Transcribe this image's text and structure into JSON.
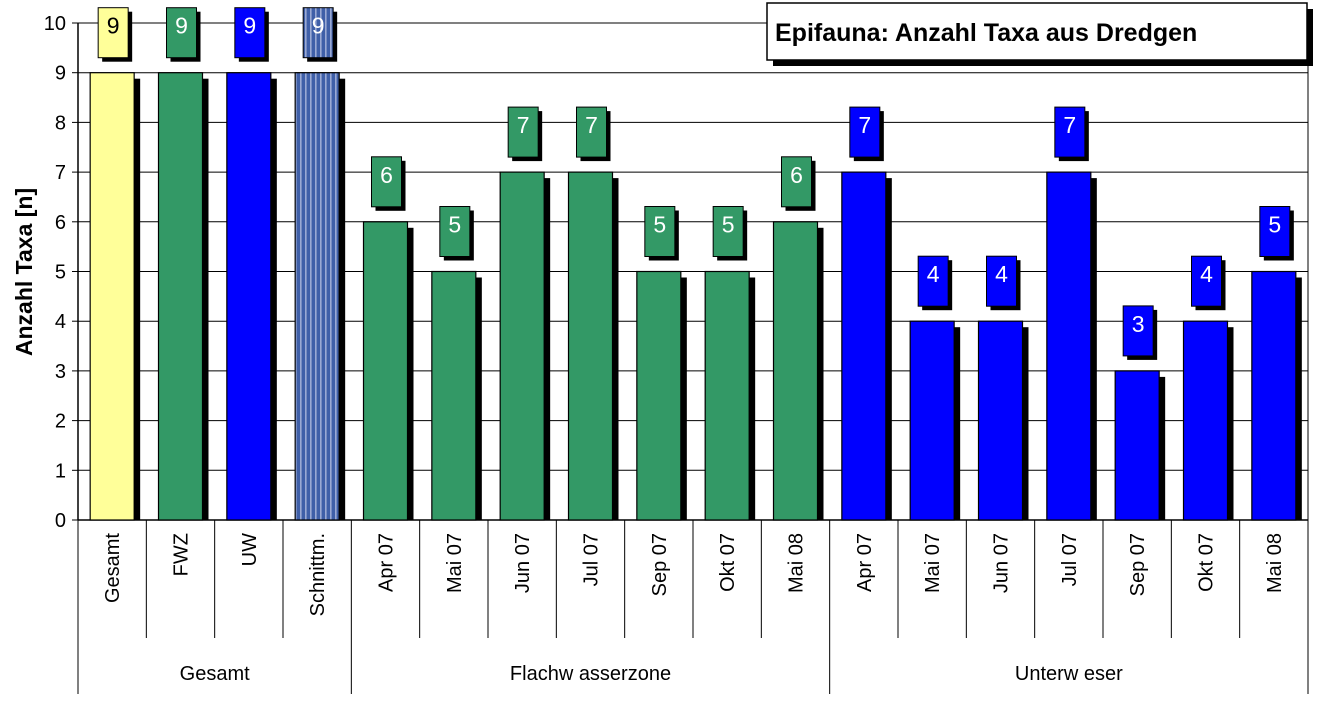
{
  "chart_data": {
    "type": "bar",
    "title": "Epifauna: Anzahl Taxa aus Dredgen",
    "ylabel": "Anzahl Taxa [n]",
    "xlabel": "",
    "ylim": [
      0,
      10
    ],
    "yticks": [
      0,
      1,
      2,
      3,
      4,
      5,
      6,
      7,
      8,
      9,
      10
    ],
    "grid": true,
    "groups": [
      {
        "label": "Gesamt",
        "categories": [
          "Gesamt",
          "FWZ",
          "UW",
          "Schnittm."
        ]
      },
      {
        "label": "Flachw asserzone",
        "categories": [
          "Apr 07",
          "Mai 07",
          "Jun 07",
          "Jul 07",
          "Sep 07",
          "Okt 07",
          "Mai 08"
        ]
      },
      {
        "label": "Unterw eser",
        "categories": [
          "Apr 07",
          "Mai 07",
          "Jun 07",
          "Jul 07",
          "Sep 07",
          "Okt 07",
          "Mai 08"
        ]
      }
    ],
    "bars": [
      {
        "group": "Gesamt",
        "category": "Gesamt",
        "value": 9,
        "color": "#ffff99"
      },
      {
        "group": "Gesamt",
        "category": "FWZ",
        "value": 9,
        "color": "#339966"
      },
      {
        "group": "Gesamt",
        "category": "UW",
        "value": 9,
        "color": "#0000ff"
      },
      {
        "group": "Gesamt",
        "category": "Schnittm.",
        "value": 9,
        "color": "#3f5fa8"
      },
      {
        "group": "Flachw asserzone",
        "category": "Apr 07",
        "value": 6,
        "color": "#339966"
      },
      {
        "group": "Flachw asserzone",
        "category": "Mai 07",
        "value": 5,
        "color": "#339966"
      },
      {
        "group": "Flachw asserzone",
        "category": "Jun 07",
        "value": 7,
        "color": "#339966"
      },
      {
        "group": "Flachw asserzone",
        "category": "Jul 07",
        "value": 7,
        "color": "#339966"
      },
      {
        "group": "Flachw asserzone",
        "category": "Sep 07",
        "value": 5,
        "color": "#339966"
      },
      {
        "group": "Flachw asserzone",
        "category": "Okt 07",
        "value": 5,
        "color": "#339966"
      },
      {
        "group": "Flachw asserzone",
        "category": "Mai 08",
        "value": 6,
        "color": "#339966"
      },
      {
        "group": "Unterw eser",
        "category": "Apr 07",
        "value": 7,
        "color": "#0000ff"
      },
      {
        "group": "Unterw eser",
        "category": "Mai 07",
        "value": 4,
        "color": "#0000ff"
      },
      {
        "group": "Unterw eser",
        "category": "Jun 07",
        "value": 4,
        "color": "#0000ff"
      },
      {
        "group": "Unterw eser",
        "category": "Jul 07",
        "value": 7,
        "color": "#0000ff"
      },
      {
        "group": "Unterw eser",
        "category": "Sep 07",
        "value": 3,
        "color": "#0000ff"
      },
      {
        "group": "Unterw eser",
        "category": "Okt 07",
        "value": 4,
        "color": "#0000ff"
      },
      {
        "group": "Unterw eser",
        "category": "Mai 08",
        "value": 5,
        "color": "#0000ff"
      }
    ],
    "colors": {
      "gesamt": "#ffff99",
      "flachwasserzone": "#339966",
      "unterweser": "#0000ff",
      "schnittmenge": "#3f5fa8",
      "shadow": "#000000",
      "grid": "#000000"
    }
  }
}
